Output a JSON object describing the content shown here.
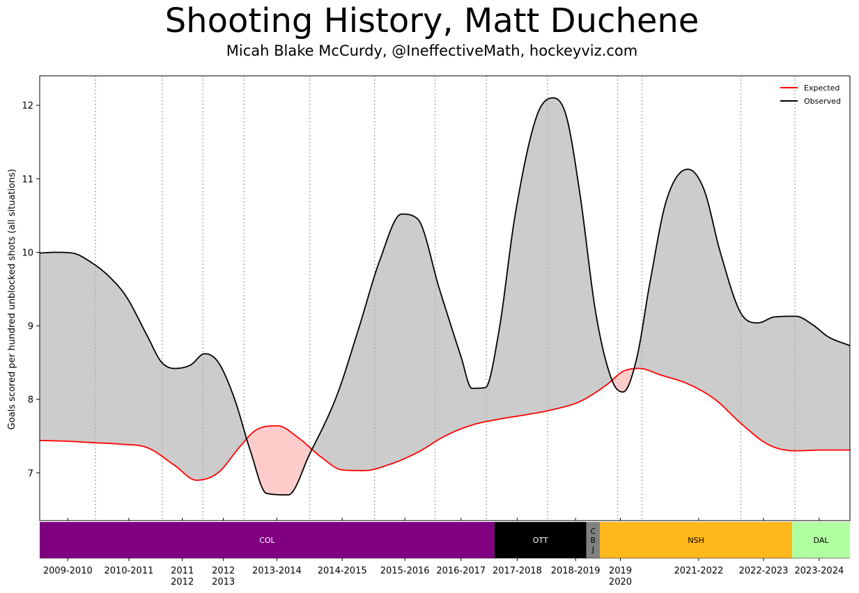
{
  "chart_data": {
    "type": "area",
    "title": "Shooting History, Matt Duchene",
    "subtitle": "Micah Blake McCurdy, @IneffectiveMath, hockeyviz.com",
    "ylabel": "Goals scored per hundred unblocked shots (all situations)",
    "xlabel": "",
    "ylim": [
      6.35,
      12.4
    ],
    "yticks": [
      7,
      8,
      9,
      10,
      11,
      12
    ],
    "xlim": [
      0,
      15
    ],
    "grid": "vertical dotted season separators",
    "legend_position": "top-right",
    "season_boundaries": [
      1.03,
      2.27,
      3.02,
      3.78,
      5.0,
      6.2,
      7.32,
      8.27,
      9.4,
      10.7,
      11.15,
      12.98,
      13.98
    ],
    "season_ticks": [
      {
        "x": 0.52,
        "label": "2009-2010"
      },
      {
        "x": 1.65,
        "label": "2010-2011"
      },
      {
        "x": 2.64,
        "label": "2011\n2012"
      },
      {
        "x": 3.4,
        "label": "2012\n2013"
      },
      {
        "x": 4.39,
        "label": "2013-2014"
      },
      {
        "x": 5.6,
        "label": "2014-2015"
      },
      {
        "x": 6.76,
        "label": "2015-2016"
      },
      {
        "x": 7.8,
        "label": "2016-2017"
      },
      {
        "x": 8.84,
        "label": "2017-2018"
      },
      {
        "x": 9.92,
        "label": "2018-2019"
      },
      {
        "x": 10.75,
        "label": "2019\n2020"
      },
      {
        "x": 12.2,
        "label": "2021-2022"
      },
      {
        "x": 13.4,
        "label": "2022-2023"
      },
      {
        "x": 14.43,
        "label": "2023-2024"
      }
    ],
    "teams": [
      {
        "label": "COL",
        "start": 0,
        "end": 8.42,
        "color": "#800080",
        "text_color": "#ffffff"
      },
      {
        "label": "OTT",
        "start": 8.42,
        "end": 10.12,
        "color": "#000000",
        "text_color": "#ffffff"
      },
      {
        "label": "C\nB\nJ",
        "start": 10.12,
        "end": 10.37,
        "color": "#808080",
        "text_color": "#000000"
      },
      {
        "label": "NSH",
        "start": 10.37,
        "end": 13.93,
        "color": "#FFB81C",
        "text_color": "#000000"
      },
      {
        "label": "DAL",
        "start": 13.93,
        "end": 15,
        "color": "#B0FFA0",
        "text_color": "#000000"
      }
    ],
    "series": [
      {
        "name": "Expected",
        "color": "#ff0000",
        "x": [
          0,
          0.5,
          1.0,
          1.5,
          2.0,
          2.5,
          2.9,
          3.3,
          3.7,
          4.0,
          4.4,
          4.8,
          5.2,
          5.6,
          6.0,
          6.5,
          7.0,
          7.5,
          8.0,
          8.5,
          9.0,
          9.5,
          10.0,
          10.5,
          10.8,
          11.1,
          11.5,
          12.0,
          12.5,
          13.0,
          13.5,
          14.0,
          14.5,
          15.0
        ],
        "values": [
          7.44,
          7.43,
          7.41,
          7.39,
          7.34,
          7.1,
          6.9,
          7.0,
          7.35,
          7.58,
          7.64,
          7.47,
          7.22,
          7.04,
          7.03,
          7.12,
          7.28,
          7.5,
          7.65,
          7.73,
          7.79,
          7.86,
          7.97,
          8.2,
          8.38,
          8.42,
          8.33,
          8.21,
          8.0,
          7.66,
          7.38,
          7.3,
          7.31,
          7.31
        ]
      },
      {
        "name": "Observed",
        "color": "#000000",
        "x": [
          0,
          0.3,
          0.6,
          1.0,
          1.3,
          1.6,
          2.0,
          2.25,
          2.5,
          2.8,
          3.05,
          3.3,
          3.6,
          3.9,
          4.2,
          4.6,
          5.0,
          5.5,
          5.9,
          6.3,
          6.7,
          7.0,
          7.4,
          7.8,
          8.0,
          8.25,
          8.5,
          8.8,
          9.2,
          9.5,
          9.75,
          10.0,
          10.3,
          10.6,
          10.8,
          11.05,
          11.3,
          11.6,
          12.0,
          12.3,
          12.6,
          13.0,
          13.3,
          13.6,
          14.0,
          14.3,
          14.6,
          15.0
        ],
        "values": [
          9.99,
          10.0,
          9.99,
          9.84,
          9.66,
          9.4,
          8.85,
          8.51,
          8.42,
          8.47,
          8.62,
          8.51,
          8.02,
          7.3,
          6.72,
          6.7,
          7.26,
          8.05,
          8.95,
          9.9,
          10.52,
          10.45,
          9.5,
          8.58,
          8.15,
          8.16,
          8.92,
          10.5,
          11.85,
          12.1,
          11.85,
          10.8,
          9.15,
          8.25,
          8.1,
          8.55,
          9.6,
          10.7,
          11.13,
          10.85,
          10.0,
          9.15,
          9.04,
          9.12,
          9.13,
          9.02,
          8.85,
          8.73
        ]
      }
    ]
  }
}
